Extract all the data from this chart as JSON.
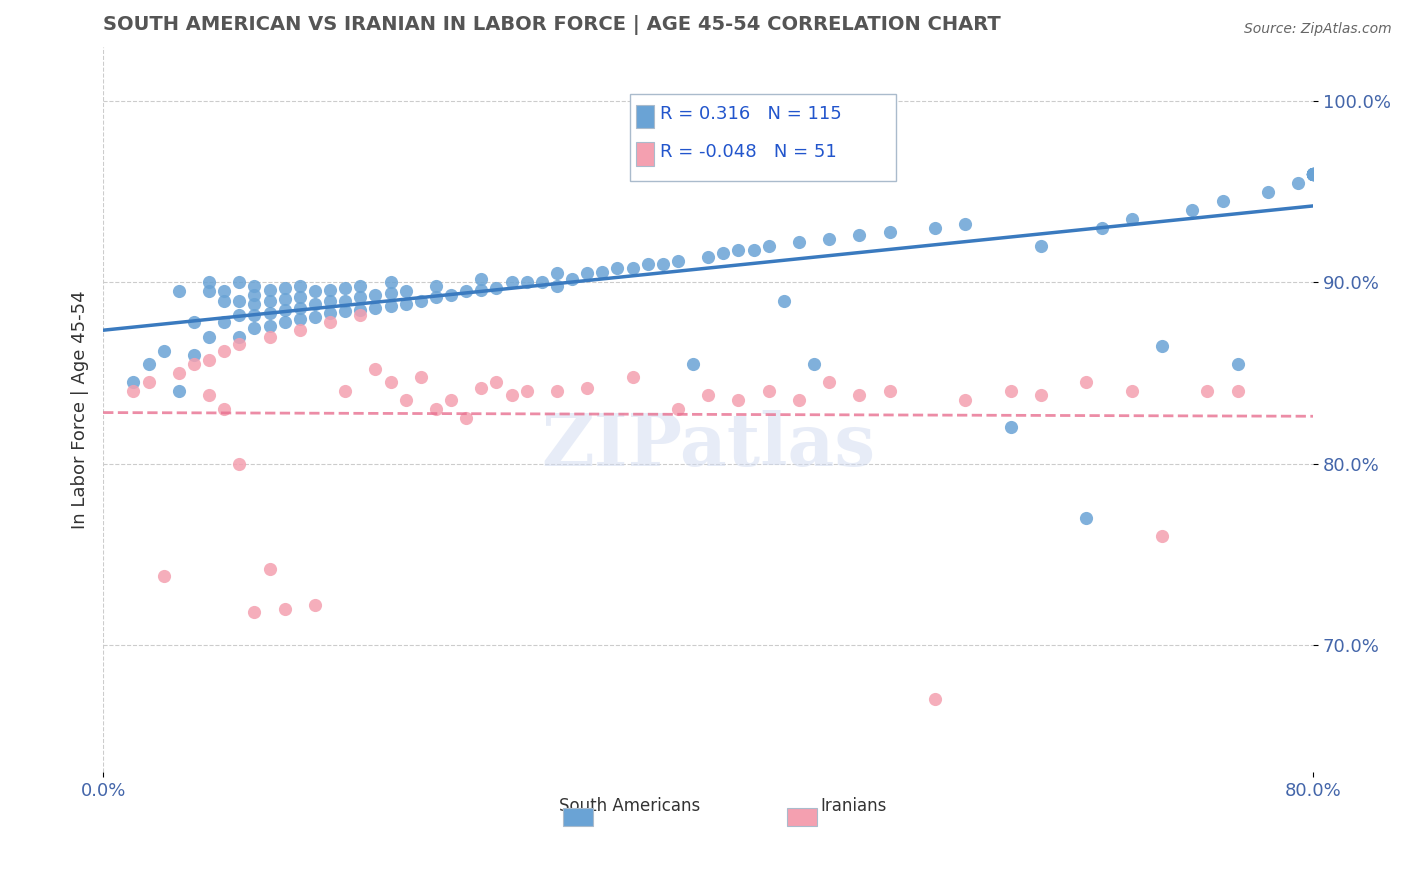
{
  "title": "SOUTH AMERICAN VS IRANIAN IN LABOR FORCE | AGE 45-54 CORRELATION CHART",
  "source": "Source: ZipAtlas.com",
  "xlabel": "",
  "ylabel": "In Labor Force | Age 45-54",
  "xlim": [
    0.0,
    0.8
  ],
  "ylim": [
    0.63,
    1.03
  ],
  "xticks": [
    0.0,
    0.1,
    0.2,
    0.3,
    0.4,
    0.5,
    0.6,
    0.7,
    0.8
  ],
  "xticklabels": [
    "0.0%",
    "",
    "",
    "",
    "",
    "",
    "",
    "",
    "80.0%"
  ],
  "yticks": [
    0.7,
    0.8,
    0.9,
    1.0
  ],
  "yticklabels": [
    "70.0%",
    "80.0%",
    "90.0%",
    "100.0%"
  ],
  "blue_R": 0.316,
  "blue_N": 115,
  "pink_R": -0.048,
  "pink_N": 51,
  "blue_color": "#6aa3d5",
  "pink_color": "#f4a0b0",
  "blue_line_color": "#3a7abf",
  "pink_line_color": "#e87090",
  "grid_color": "#cccccc",
  "text_color": "#4466aa",
  "title_color": "#555555",
  "watermark": "ZIPatlas",
  "legend_R_color": "#2255cc",
  "blue_scatter_x": [
    0.02,
    0.03,
    0.04,
    0.05,
    0.05,
    0.06,
    0.06,
    0.07,
    0.07,
    0.07,
    0.08,
    0.08,
    0.08,
    0.09,
    0.09,
    0.09,
    0.09,
    0.1,
    0.1,
    0.1,
    0.1,
    0.1,
    0.11,
    0.11,
    0.11,
    0.11,
    0.12,
    0.12,
    0.12,
    0.12,
    0.13,
    0.13,
    0.13,
    0.13,
    0.14,
    0.14,
    0.14,
    0.15,
    0.15,
    0.15,
    0.16,
    0.16,
    0.16,
    0.17,
    0.17,
    0.17,
    0.18,
    0.18,
    0.19,
    0.19,
    0.19,
    0.2,
    0.2,
    0.21,
    0.22,
    0.22,
    0.23,
    0.24,
    0.25,
    0.25,
    0.26,
    0.27,
    0.28,
    0.29,
    0.3,
    0.3,
    0.31,
    0.32,
    0.33,
    0.34,
    0.35,
    0.36,
    0.37,
    0.38,
    0.39,
    0.4,
    0.41,
    0.42,
    0.43,
    0.44,
    0.45,
    0.46,
    0.47,
    0.48,
    0.5,
    0.52,
    0.55,
    0.57,
    0.6,
    0.62,
    0.65,
    0.66,
    0.68,
    0.7,
    0.72,
    0.74,
    0.75,
    0.77,
    0.79,
    0.8,
    0.8,
    0.8,
    0.8,
    0.8,
    0.8,
    0.8,
    0.8,
    0.8,
    0.8,
    0.8,
    0.8,
    0.8,
    0.8,
    0.8,
    0.8
  ],
  "blue_scatter_y": [
    0.845,
    0.855,
    0.862,
    0.84,
    0.895,
    0.86,
    0.878,
    0.87,
    0.895,
    0.9,
    0.878,
    0.89,
    0.895,
    0.87,
    0.882,
    0.89,
    0.9,
    0.875,
    0.882,
    0.888,
    0.893,
    0.898,
    0.876,
    0.883,
    0.89,
    0.896,
    0.878,
    0.885,
    0.891,
    0.897,
    0.88,
    0.886,
    0.892,
    0.898,
    0.881,
    0.888,
    0.895,
    0.883,
    0.89,
    0.896,
    0.884,
    0.89,
    0.897,
    0.885,
    0.892,
    0.898,
    0.886,
    0.893,
    0.887,
    0.894,
    0.9,
    0.888,
    0.895,
    0.89,
    0.892,
    0.898,
    0.893,
    0.895,
    0.896,
    0.902,
    0.897,
    0.9,
    0.9,
    0.9,
    0.898,
    0.905,
    0.902,
    0.905,
    0.906,
    0.908,
    0.908,
    0.91,
    0.91,
    0.912,
    0.855,
    0.914,
    0.916,
    0.918,
    0.918,
    0.92,
    0.89,
    0.922,
    0.855,
    0.924,
    0.926,
    0.928,
    0.93,
    0.932,
    0.82,
    0.92,
    0.77,
    0.93,
    0.935,
    0.865,
    0.94,
    0.945,
    0.855,
    0.95,
    0.955,
    0.96,
    0.96,
    0.96,
    0.96,
    0.96,
    0.96,
    0.96,
    0.96,
    0.96,
    0.96,
    0.96,
    0.96,
    0.96,
    0.96,
    0.96,
    0.96
  ],
  "pink_scatter_x": [
    0.02,
    0.03,
    0.04,
    0.05,
    0.06,
    0.07,
    0.07,
    0.08,
    0.08,
    0.09,
    0.09,
    0.1,
    0.11,
    0.11,
    0.12,
    0.13,
    0.14,
    0.15,
    0.16,
    0.17,
    0.18,
    0.19,
    0.2,
    0.21,
    0.22,
    0.23,
    0.24,
    0.25,
    0.26,
    0.27,
    0.28,
    0.3,
    0.32,
    0.35,
    0.38,
    0.4,
    0.42,
    0.44,
    0.46,
    0.48,
    0.5,
    0.52,
    0.55,
    0.57,
    0.6,
    0.62,
    0.65,
    0.68,
    0.7,
    0.73,
    0.75
  ],
  "pink_scatter_y": [
    0.84,
    0.845,
    0.738,
    0.85,
    0.855,
    0.838,
    0.857,
    0.83,
    0.862,
    0.8,
    0.866,
    0.718,
    0.742,
    0.87,
    0.72,
    0.874,
    0.722,
    0.878,
    0.84,
    0.882,
    0.852,
    0.845,
    0.835,
    0.848,
    0.83,
    0.835,
    0.825,
    0.842,
    0.845,
    0.838,
    0.84,
    0.84,
    0.842,
    0.848,
    0.83,
    0.838,
    0.835,
    0.84,
    0.835,
    0.845,
    0.838,
    0.84,
    0.67,
    0.835,
    0.84,
    0.838,
    0.845,
    0.84,
    0.76,
    0.84,
    0.84
  ]
}
